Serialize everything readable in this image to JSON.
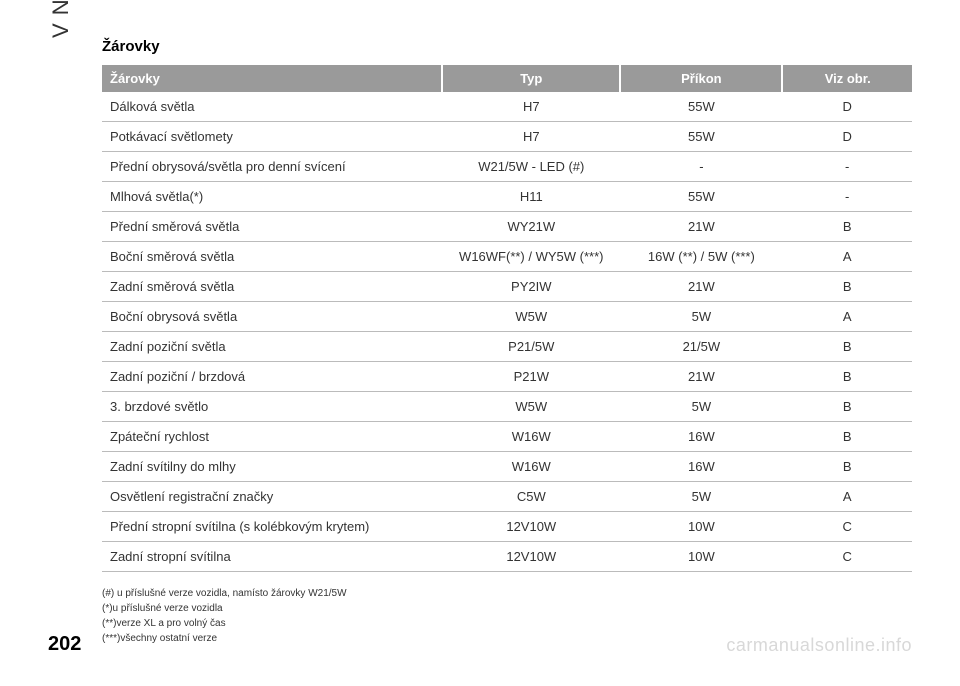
{
  "sidebar_label": "V NOUZI",
  "section_title": "Žárovky",
  "table": {
    "columns": [
      "Žárovky",
      "Typ",
      "Příkon",
      "Viz obr."
    ],
    "rows": [
      [
        "Dálková světla",
        "H7",
        "55W",
        "D"
      ],
      [
        "Potkávací světlomety",
        "H7",
        "55W",
        "D"
      ],
      [
        "Přední obrysová/světla pro denní svícení",
        "W21/5W - LED (#)",
        "-",
        "-"
      ],
      [
        "Mlhová světla(*)",
        "H11",
        "55W",
        "-"
      ],
      [
        "Přední směrová světla",
        "WY21W",
        "21W",
        "B"
      ],
      [
        "Boční směrová světla",
        "W16WF(**) / WY5W (***)",
        "16W (**) / 5W (***)",
        "A"
      ],
      [
        "Zadní směrová světla",
        "PY2IW",
        "21W",
        "B"
      ],
      [
        "Boční obrysová světla",
        "W5W",
        "5W",
        "A"
      ],
      [
        "Zadní poziční světla",
        "P21/5W",
        "21/5W",
        "B"
      ],
      [
        "Zadní poziční / brzdová",
        "P21W",
        "21W",
        "B"
      ],
      [
        "3. brzdové světlo",
        "W5W",
        "5W",
        "B"
      ],
      [
        "Zpáteční rychlost",
        "W16W",
        "16W",
        "B"
      ],
      [
        "Zadní svítilny do mlhy",
        "W16W",
        "16W",
        "B"
      ],
      [
        "Osvětlení registrační značky",
        "C5W",
        "5W",
        "A"
      ],
      [
        "Přední stropní svítilna (s kolébkovým krytem)",
        "12V10W",
        "10W",
        "C"
      ],
      [
        "Zadní stropní svítilna",
        "12V10W",
        "10W",
        "C"
      ]
    ],
    "header_bg": "#9a9a9a",
    "header_fg": "#ffffff",
    "row_border": "#bbbbbb",
    "font_size_body": 13,
    "font_size_header": 13
  },
  "footnotes": [
    "(#) u příslušné verze vozidla, namísto žárovky W21/5W",
    "(*)u příslušné verze vozidla",
    "(**)verze XL a pro volný čas",
    "(***)všechny ostatní verze"
  ],
  "page_number": "202",
  "watermark": "carmanualsonline.info"
}
